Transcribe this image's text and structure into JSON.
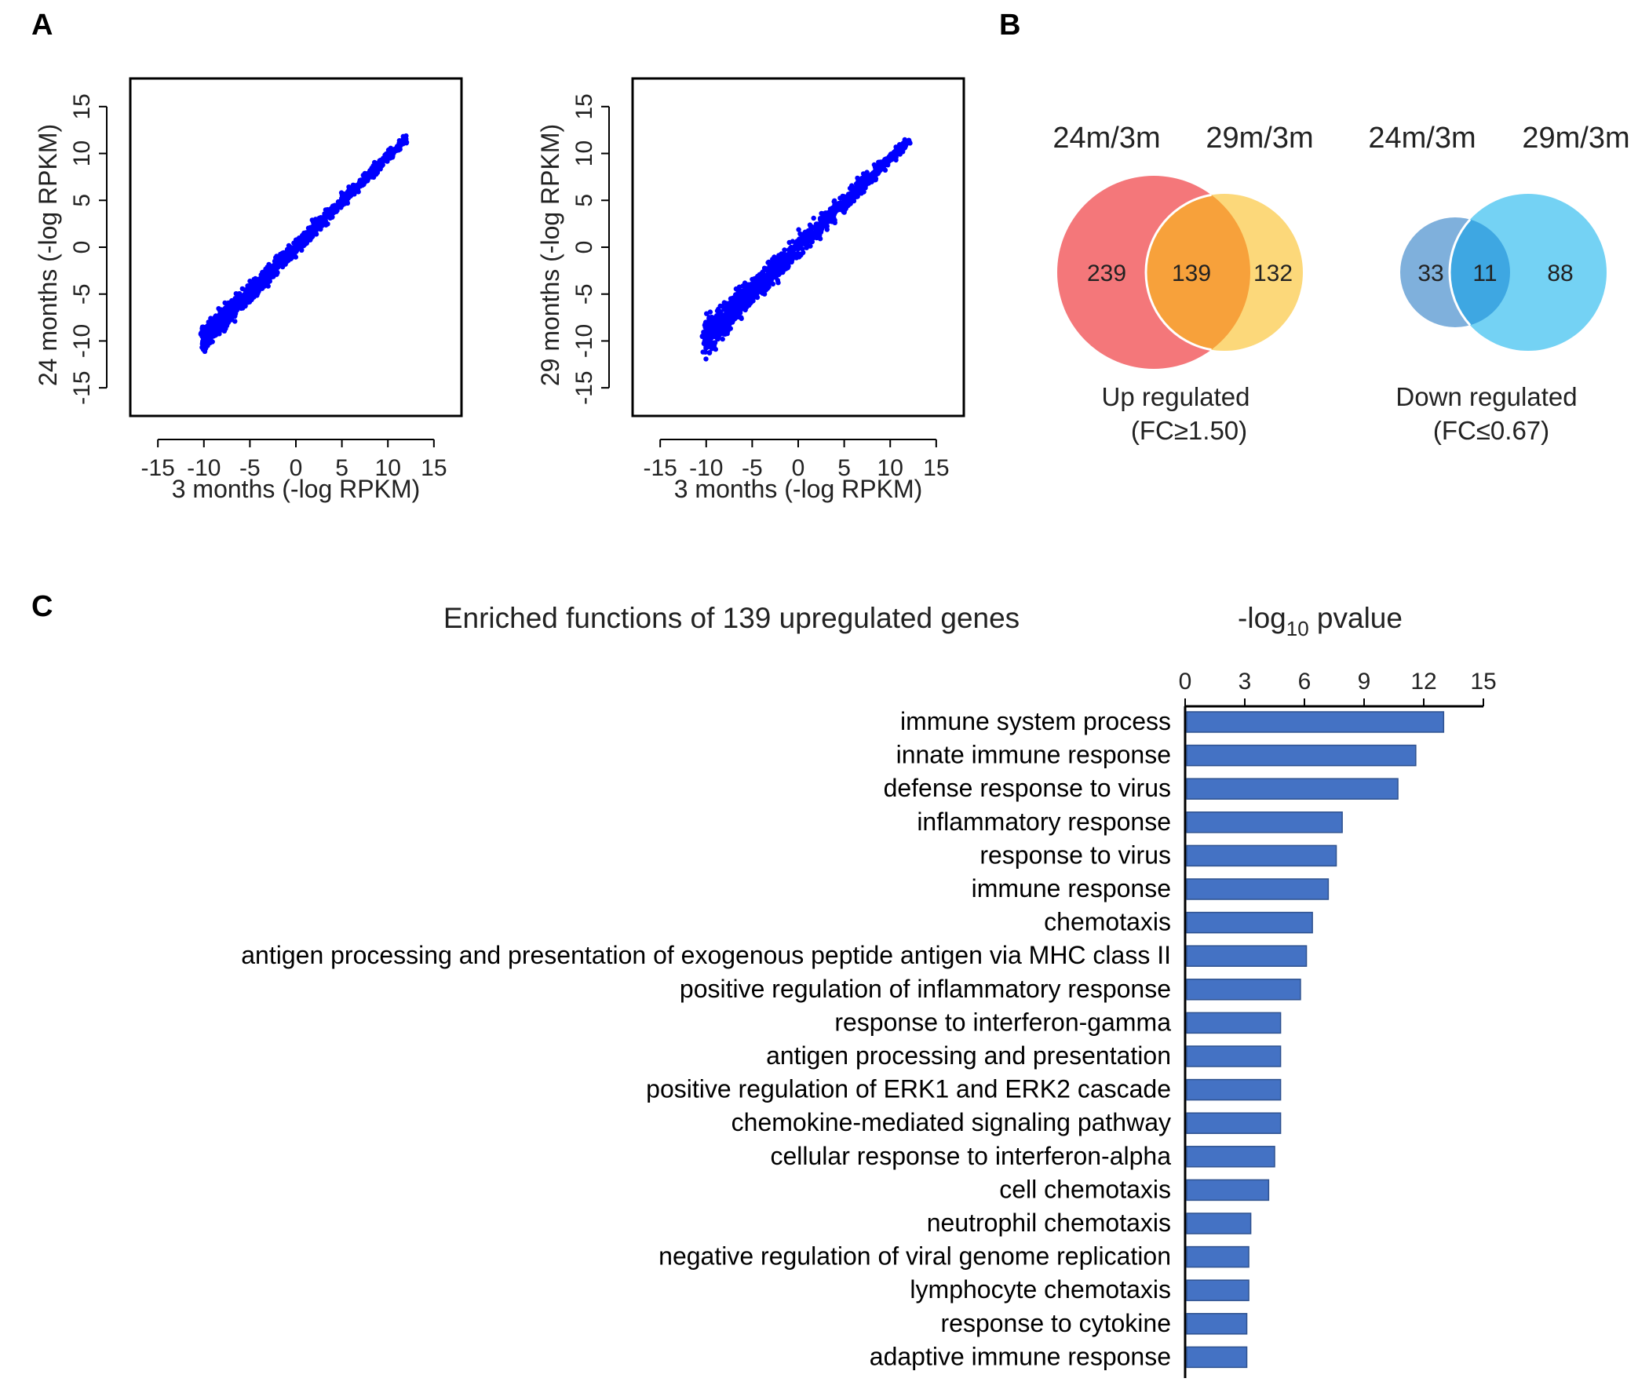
{
  "panels": {
    "a": "A",
    "b": "B",
    "c": "C"
  },
  "chart_data": [
    {
      "type": "scatter",
      "id": "scatter-24",
      "xlabel": "3 months (-log RPKM)",
      "ylabel": "24 months (-log RPKM)",
      "xlim": [
        -18,
        18
      ],
      "ylim": [
        -18,
        18
      ],
      "xticks": [
        "-15",
        "-10",
        "-5",
        "0",
        "5",
        "10",
        "15"
      ],
      "yticks": [
        "-15",
        "-10",
        "-5",
        "0",
        "5",
        "10",
        "15"
      ],
      "color": "#0000ff",
      "description_points": {
        "x_range": [
          -10,
          12
        ],
        "slope": 0.97,
        "spread": 0.9
      }
    },
    {
      "type": "scatter",
      "id": "scatter-29",
      "xlabel": "3 months (-log RPKM)",
      "ylabel": "29 months (-log RPKM)",
      "xlim": [
        -18,
        18
      ],
      "ylim": [
        -18,
        18
      ],
      "xticks": [
        "-15",
        "-10",
        "-5",
        "0",
        "5",
        "10",
        "15"
      ],
      "yticks": [
        "-15",
        "-10",
        "-5",
        "0",
        "5",
        "10",
        "15"
      ],
      "color": "#0000ff",
      "description_points": {
        "x_range": [
          -10,
          12
        ],
        "slope": 0.95,
        "spread": 1.3
      }
    },
    {
      "type": "venn",
      "id": "venn-up",
      "sets": [
        "24m/3m",
        "29m/3m"
      ],
      "left_only": "239",
      "overlap": "139",
      "right_only": "132",
      "caption_line1": "Up regulated",
      "caption_line2": "(FC≥1.50)",
      "colors": {
        "left": "#f4777a",
        "overlap": "#f7a13b",
        "right": "#fcd87a"
      }
    },
    {
      "type": "venn",
      "id": "venn-down",
      "sets": [
        "24m/3m",
        "29m/3m"
      ],
      "left_only": "33",
      "overlap": "11",
      "right_only": "88",
      "caption_line1": "Down regulated",
      "caption_line2": "(FC≤0.67)",
      "colors": {
        "left": "#7fb0dc",
        "overlap": "#3ea7e2",
        "right": "#74d2f4"
      }
    },
    {
      "type": "bar",
      "id": "enrichment-bars",
      "orientation": "horizontal",
      "title": "Enriched functions of 139 upregulated genes",
      "axis_title_prefix": "-log",
      "axis_title_sub": "10",
      "axis_title_suffix": " pvalue",
      "xlim": [
        0,
        15
      ],
      "xticks": [
        "0",
        "3",
        "6",
        "9",
        "12",
        "15"
      ],
      "color": "#4472c4",
      "categories": [
        "immune system process",
        "innate immune response",
        "defense response to virus",
        "inflammatory response",
        "response to virus",
        "immune response",
        "chemotaxis",
        "antigen processing and presentation of exogenous peptide antigen via MHC class II",
        "positive regulation of inflammatory response",
        "response to interferon-gamma",
        "antigen processing and presentation",
        "positive regulation of ERK1 and ERK2 cascade",
        "chemokine-mediated signaling pathway",
        "cellular response to interferon-alpha",
        "cell chemotaxis",
        "neutrophil chemotaxis",
        "negative regulation of viral genome replication",
        "lymphocyte chemotaxis",
        "response to cytokine",
        "adaptive immune response"
      ],
      "values": [
        13.0,
        11.6,
        10.7,
        7.9,
        7.6,
        7.2,
        6.4,
        6.1,
        5.8,
        4.8,
        4.8,
        4.8,
        4.8,
        4.5,
        4.2,
        3.3,
        3.2,
        3.2,
        3.1,
        3.1
      ]
    }
  ]
}
